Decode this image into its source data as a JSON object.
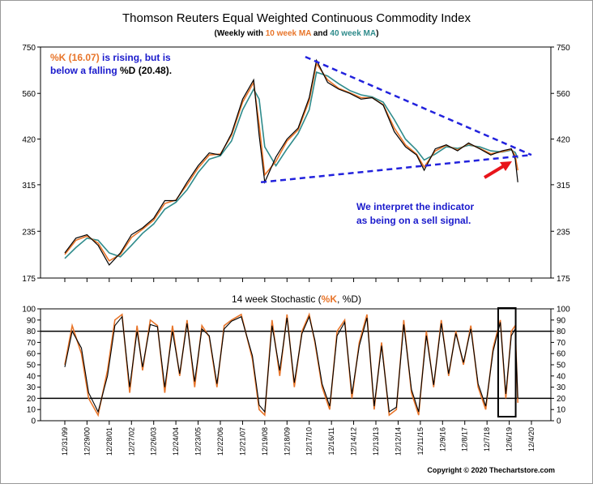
{
  "chart_data": [
    {
      "type": "line",
      "title": "Thomson Reuters Equal Weighted Continuous Commodity Index",
      "subtitle": {
        "prefix": "(Weekly with ",
        "ma10": "10 week MA",
        "mid": " and ",
        "ma40": "40 week MA",
        "suffix": ")"
      },
      "y_scale": "log",
      "yticks": [
        175,
        235,
        315,
        420,
        560,
        750
      ],
      "ylim": [
        175,
        750
      ],
      "x_range": [
        "12/31/99",
        "12/4/20"
      ],
      "series": [
        {
          "name": "Price",
          "color": "#000000",
          "x": [
            "12/31/99",
            "6/30/00",
            "12/29/00",
            "6/29/01",
            "12/28/01",
            "6/28/02",
            "12/27/02",
            "6/27/03",
            "12/26/03",
            "6/25/04",
            "12/24/04",
            "6/24/05",
            "12/23/05",
            "6/23/06",
            "12/22/06",
            "6/22/07",
            "12/21/07",
            "6/20/08",
            "9/19/08",
            "12/19/08",
            "6/19/09",
            "12/18/09",
            "6/18/10",
            "12/17/10",
            "4/15/11",
            "10/14/11",
            "4/13/12",
            "10/12/12",
            "4/12/13",
            "10/11/13",
            "4/11/14",
            "10/10/14",
            "4/10/15",
            "10/9/15",
            "2/12/16",
            "8/12/16",
            "2/10/17",
            "8/11/17",
            "2/9/18",
            "8/10/18",
            "2/8/19",
            "8/9/19",
            "1/10/20",
            "3/13/20",
            "4/24/20"
          ],
          "y": [
            205,
            225,
            230,
            215,
            190,
            205,
            230,
            240,
            255,
            285,
            285,
            320,
            355,
            385,
            380,
            435,
            540,
            610,
            430,
            320,
            375,
            420,
            450,
            545,
            690,
            600,
            575,
            560,
            540,
            545,
            520,
            440,
            400,
            380,
            345,
            395,
            405,
            390,
            410,
            395,
            380,
            390,
            395,
            370,
            320
          ]
        },
        {
          "name": "10 week MA",
          "color": "#e8752a",
          "x": [
            "12/31/99",
            "6/30/00",
            "12/29/00",
            "6/29/01",
            "12/28/01",
            "6/28/02",
            "12/27/02",
            "6/27/03",
            "12/26/03",
            "6/25/04",
            "12/24/04",
            "6/24/05",
            "12/23/05",
            "6/23/06",
            "12/22/06",
            "6/22/07",
            "12/21/07",
            "6/20/08",
            "9/19/08",
            "12/19/08",
            "6/19/09",
            "12/18/09",
            "6/18/10",
            "12/17/10",
            "4/15/11",
            "10/14/11",
            "4/13/12",
            "10/12/12",
            "4/12/13",
            "10/11/13",
            "4/11/14",
            "10/10/14",
            "4/10/15",
            "10/9/15",
            "2/12/16",
            "8/12/16",
            "2/10/17",
            "8/11/17",
            "2/9/18",
            "8/10/18",
            "2/8/19",
            "8/9/19",
            "1/10/20",
            "3/13/20",
            "4/24/20"
          ],
          "y": [
            203,
            222,
            228,
            218,
            195,
            203,
            226,
            238,
            252,
            280,
            286,
            315,
            350,
            380,
            382,
            430,
            530,
            600,
            460,
            335,
            365,
            415,
            445,
            535,
            675,
            610,
            578,
            562,
            545,
            545,
            522,
            450,
            405,
            382,
            352,
            390,
            404,
            392,
            408,
            396,
            383,
            388,
            394,
            378,
            345
          ]
        },
        {
          "name": "40 week MA",
          "color": "#2e8b8b",
          "x": [
            "12/31/99",
            "6/30/00",
            "12/29/00",
            "6/29/01",
            "12/28/01",
            "6/28/02",
            "12/27/02",
            "6/27/03",
            "12/26/03",
            "6/25/04",
            "12/24/04",
            "6/24/05",
            "12/23/05",
            "6/23/06",
            "12/22/06",
            "6/22/07",
            "12/21/07",
            "6/20/08",
            "9/19/08",
            "12/19/08",
            "6/19/09",
            "12/18/09",
            "6/18/10",
            "12/17/10",
            "4/15/11",
            "10/14/11",
            "4/13/12",
            "10/12/12",
            "4/12/13",
            "10/11/13",
            "4/11/14",
            "10/10/14",
            "4/10/15",
            "10/9/15",
            "2/12/16",
            "8/12/16",
            "2/10/17",
            "8/11/17",
            "2/9/18",
            "8/10/18",
            "2/8/19",
            "8/9/19",
            "1/10/20",
            "3/13/20",
            "4/24/20"
          ],
          "y": [
            198,
            212,
            225,
            222,
            205,
            200,
            215,
            232,
            246,
            270,
            282,
            305,
            340,
            370,
            378,
            415,
            505,
            575,
            540,
            400,
            355,
            395,
            435,
            505,
            640,
            625,
            595,
            570,
            555,
            548,
            530,
            475,
            420,
            392,
            368,
            382,
            400,
            396,
            404,
            400,
            390,
            387,
            392,
            386,
            372
          ]
        }
      ],
      "trendlines": [
        {
          "name": "upper-trendline",
          "x": [
            "10/14/10",
            "12/4/20"
          ],
          "y": [
            705,
            380
          ]
        },
        {
          "name": "lower-trendline",
          "x": [
            "10/17/08",
            "12/4/20"
          ],
          "y": [
            320,
            380
          ]
        }
      ],
      "annotations": {
        "indicator_note": {
          "pre": "%K (16.07)",
          "mid1": " is rising, but is",
          "line2_pre": "below a falling ",
          "pctd": "%D",
          "line2_post": " (20.48)."
        },
        "sell_note": [
          "We interpret the indicator",
          "as being on a sell signal."
        ]
      }
    },
    {
      "type": "line",
      "title": {
        "prefix": "14 week Stochastic (",
        "k": "%K",
        "mid": ", ",
        "d": "%D",
        "suffix": ")"
      },
      "ylim": [
        0,
        100
      ],
      "yticks": [
        0,
        10,
        20,
        30,
        40,
        50,
        60,
        70,
        80,
        90,
        100
      ],
      "reference_lines": [
        20,
        80
      ],
      "x_tick_labels": [
        "12/31/99",
        "12/29/00",
        "12/28/01",
        "12/27/02",
        "12/26/03",
        "12/24/04",
        "12/23/05",
        "12/22/06",
        "12/21/07",
        "12/19/08",
        "12/18/09",
        "12/17/10",
        "12/16/11",
        "12/14/12",
        "12/13/13",
        "12/12/14",
        "12/11/15",
        "12/9/16",
        "12/8/17",
        "12/7/18",
        "12/6/19",
        "12/4/20"
      ],
      "series": [
        {
          "name": "%K",
          "color": "#e8752a",
          "x": [
            "12/31/99",
            "4/30/00",
            "9/29/00",
            "1/26/01",
            "6/29/01",
            "11/30/01",
            "3/29/02",
            "7/26/02",
            "11/29/02",
            "3/28/03",
            "6/27/03",
            "10/31/03",
            "2/27/04",
            "6/25/04",
            "10/29/04",
            "2/25/05",
            "6/24/05",
            "10/28/05",
            "2/24/06",
            "6/23/06",
            "10/27/06",
            "2/23/07",
            "6/22/07",
            "11/30/07",
            "5/30/08",
            "9/19/08",
            "12/19/08",
            "4/17/09",
            "8/21/09",
            "12/18/09",
            "4/16/10",
            "8/20/10",
            "12/17/10",
            "3/18/11",
            "7/15/11",
            "11/18/11",
            "3/16/12",
            "7/20/12",
            "11/16/12",
            "3/15/13",
            "7/19/13",
            "11/15/13",
            "3/14/14",
            "7/18/14",
            "11/14/14",
            "3/13/15",
            "7/17/15",
            "11/13/15",
            "3/18/16",
            "7/15/16",
            "11/18/16",
            "3/17/17",
            "7/14/17",
            "11/17/17",
            "3/16/18",
            "7/13/18",
            "11/16/18",
            "3/15/19",
            "7/12/19",
            "10/11/19",
            "1/10/20",
            "3/13/20",
            "4/24/20"
          ],
          "y": [
            50,
            85,
            60,
            20,
            5,
            45,
            90,
            95,
            25,
            85,
            45,
            90,
            85,
            25,
            85,
            40,
            90,
            30,
            85,
            75,
            30,
            85,
            90,
            95,
            55,
            10,
            5,
            90,
            40,
            95,
            30,
            80,
            95,
            70,
            30,
            10,
            80,
            90,
            20,
            70,
            95,
            10,
            70,
            5,
            10,
            90,
            25,
            5,
            80,
            30,
            90,
            40,
            80,
            50,
            85,
            30,
            10,
            65,
            90,
            20,
            80,
            85,
            16
          ]
        },
        {
          "name": "%D",
          "color": "#000000",
          "x": [
            "12/31/99",
            "4/30/00",
            "9/29/00",
            "1/26/01",
            "6/29/01",
            "11/30/01",
            "3/29/02",
            "7/26/02",
            "11/29/02",
            "3/28/03",
            "6/27/03",
            "10/31/03",
            "2/27/04",
            "6/25/04",
            "10/29/04",
            "2/25/05",
            "6/24/05",
            "10/28/05",
            "2/24/06",
            "6/23/06",
            "10/27/06",
            "2/23/07",
            "6/22/07",
            "11/30/07",
            "5/30/08",
            "9/19/08",
            "12/19/08",
            "4/17/09",
            "8/21/09",
            "12/18/09",
            "4/16/10",
            "8/20/10",
            "12/17/10",
            "3/18/11",
            "7/15/11",
            "11/18/11",
            "3/16/12",
            "7/20/12",
            "11/16/12",
            "3/15/13",
            "7/19/13",
            "11/15/13",
            "3/14/14",
            "7/18/14",
            "11/14/14",
            "3/13/15",
            "7/17/15",
            "11/13/15",
            "3/18/16",
            "7/15/16",
            "11/18/16",
            "3/17/17",
            "7/14/17",
            "11/17/17",
            "3/16/18",
            "7/13/18",
            "11/16/18",
            "3/15/19",
            "7/12/19",
            "10/11/19",
            "1/10/20",
            "3/13/20",
            "4/24/20"
          ],
          "y": [
            48,
            80,
            65,
            25,
            8,
            40,
            85,
            93,
            30,
            80,
            48,
            86,
            84,
            30,
            80,
            42,
            87,
            35,
            82,
            76,
            33,
            82,
            89,
            93,
            58,
            14,
            8,
            85,
            45,
            92,
            34,
            78,
            93,
            72,
            33,
            13,
            76,
            88,
            24,
            67,
            92,
            13,
            67,
            8,
            12,
            86,
            28,
            8,
            76,
            32,
            87,
            42,
            78,
            52,
            82,
            33,
            13,
            62,
            88,
            24,
            76,
            82,
            20
          ]
        }
      ],
      "highlight_box": {
        "x": [
          "6/7/19",
          "3/20/20"
        ]
      }
    }
  ],
  "copyright": "Copyright © 2020 Thechartstore.com"
}
